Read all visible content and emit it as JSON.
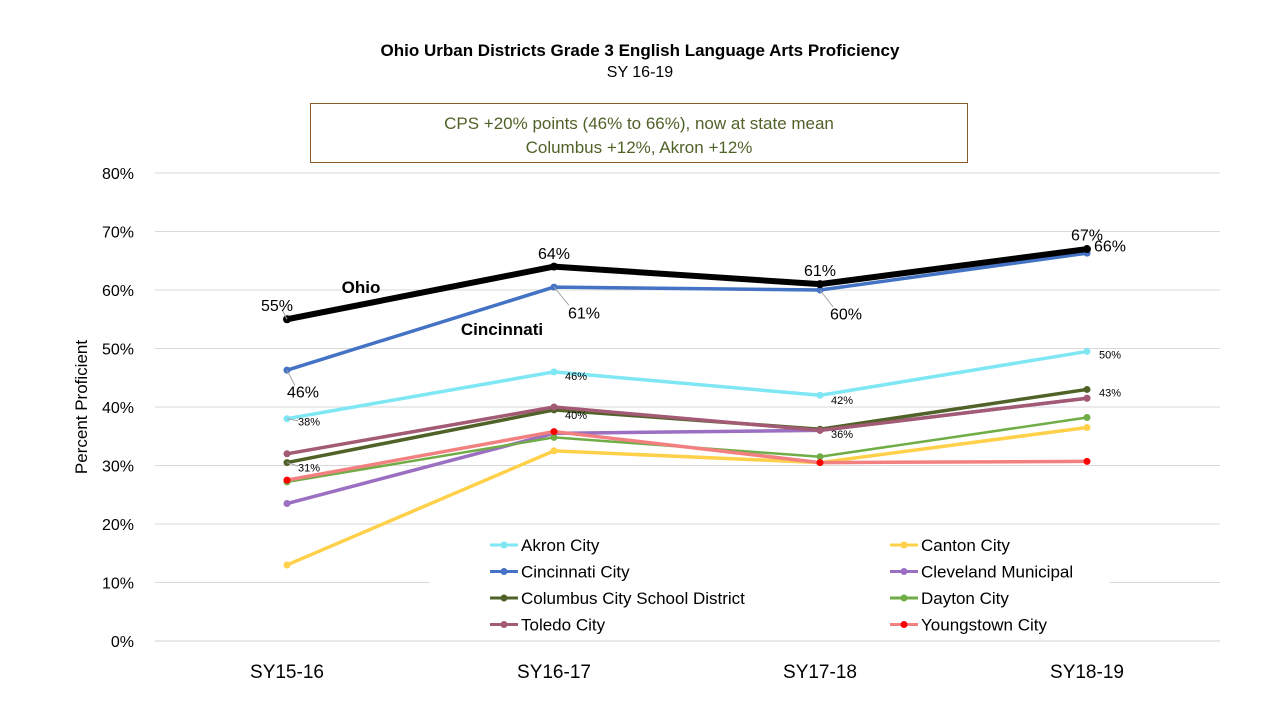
{
  "chart_data": {
    "type": "line",
    "title": "Ohio Urban Districts Grade 3 English Language Arts Proficiency",
    "subtitle": "SY 16-19",
    "annotation": [
      "CPS  +20% points (46% to 66%), now at state mean",
      "Columbus +12%, Akron +12%"
    ],
    "ylabel": "Percent Proficient",
    "xlabel": "",
    "ylim": [
      0,
      0.8
    ],
    "yticks": [
      "0%",
      "10%",
      "20%",
      "30%",
      "40%",
      "50%",
      "60%",
      "70%",
      "80%"
    ],
    "categories": [
      "SY15-16",
      "SY16-17",
      "SY17-18",
      "SY18-19"
    ],
    "grid": true,
    "legend_position": "bottom",
    "series": [
      {
        "name": "Ohio",
        "color": "#000000",
        "in_legend": false,
        "width": 6,
        "values": [
          0.55,
          0.64,
          0.61,
          0.67
        ]
      },
      {
        "name": "Akron City",
        "color": "#7fe6f4",
        "in_legend": true,
        "width": 3.5,
        "values": [
          0.38,
          0.46,
          0.42,
          0.495
        ]
      },
      {
        "name": "Canton City",
        "color": "#ffd04a",
        "in_legend": true,
        "width": 3.5,
        "values": [
          0.13,
          0.325,
          0.305,
          0.365
        ]
      },
      {
        "name": "Cincinnati City",
        "color": "#4472c4",
        "in_legend": true,
        "width": 3.5,
        "values": [
          0.463,
          0.605,
          0.6,
          0.663
        ]
      },
      {
        "name": "Cleveland Municipal",
        "color": "#9b6fc1",
        "in_legend": true,
        "width": 3.5,
        "values": [
          0.235,
          0.355,
          0.36,
          0.415
        ]
      },
      {
        "name": "Columbus City School District",
        "color": "#4f6228",
        "in_legend": true,
        "width": 3.5,
        "values": [
          0.305,
          0.395,
          0.362,
          0.43
        ]
      },
      {
        "name": "Dayton City",
        "color": "#70ad47",
        "in_legend": true,
        "width": 2.5,
        "values": [
          0.272,
          0.348,
          0.315,
          0.382
        ]
      },
      {
        "name": "Toledo City",
        "color": "#a35a74",
        "in_legend": true,
        "width": 3.5,
        "values": [
          0.32,
          0.4,
          0.36,
          0.415
        ]
      },
      {
        "name": "Youngstown City",
        "color": "#f28080",
        "in_legend": true,
        "marker_color": "#ff0000",
        "width": 3.5,
        "values": [
          0.275,
          0.358,
          0.305,
          0.307
        ]
      }
    ],
    "series_labels": [
      {
        "text": "Ohio",
        "series": "Ohio"
      },
      {
        "text": "Cincinnati",
        "series": "Cincinnati City"
      }
    ],
    "data_labels": [
      {
        "text": "55%",
        "series": "Ohio",
        "index": 0
      },
      {
        "text": "64%",
        "series": "Ohio",
        "index": 1
      },
      {
        "text": "61%",
        "series": "Ohio",
        "index": 2
      },
      {
        "text": "67%",
        "series": "Ohio",
        "index": 3
      },
      {
        "text": "46%",
        "series": "Cincinnati City",
        "index": 0
      },
      {
        "text": "61%",
        "series": "Cincinnati City",
        "index": 1
      },
      {
        "text": "60%",
        "series": "Cincinnati City",
        "index": 2
      },
      {
        "text": "66%",
        "series": "Cincinnati City",
        "index": 3
      },
      {
        "text": "38%",
        "series": "Akron City",
        "index": 0
      },
      {
        "text": "46%",
        "series": "Akron City",
        "index": 1
      },
      {
        "text": "42%",
        "series": "Akron City",
        "index": 2
      },
      {
        "text": "50%",
        "series": "Akron City",
        "index": 3
      },
      {
        "text": "31%",
        "series": "Columbus City School District",
        "index": 0
      },
      {
        "text": "40%",
        "series": "Columbus City School District",
        "index": 1
      },
      {
        "text": "36%",
        "series": "Columbus City School District",
        "index": 2
      },
      {
        "text": "43%",
        "series": "Columbus City School District",
        "index": 3
      }
    ]
  }
}
